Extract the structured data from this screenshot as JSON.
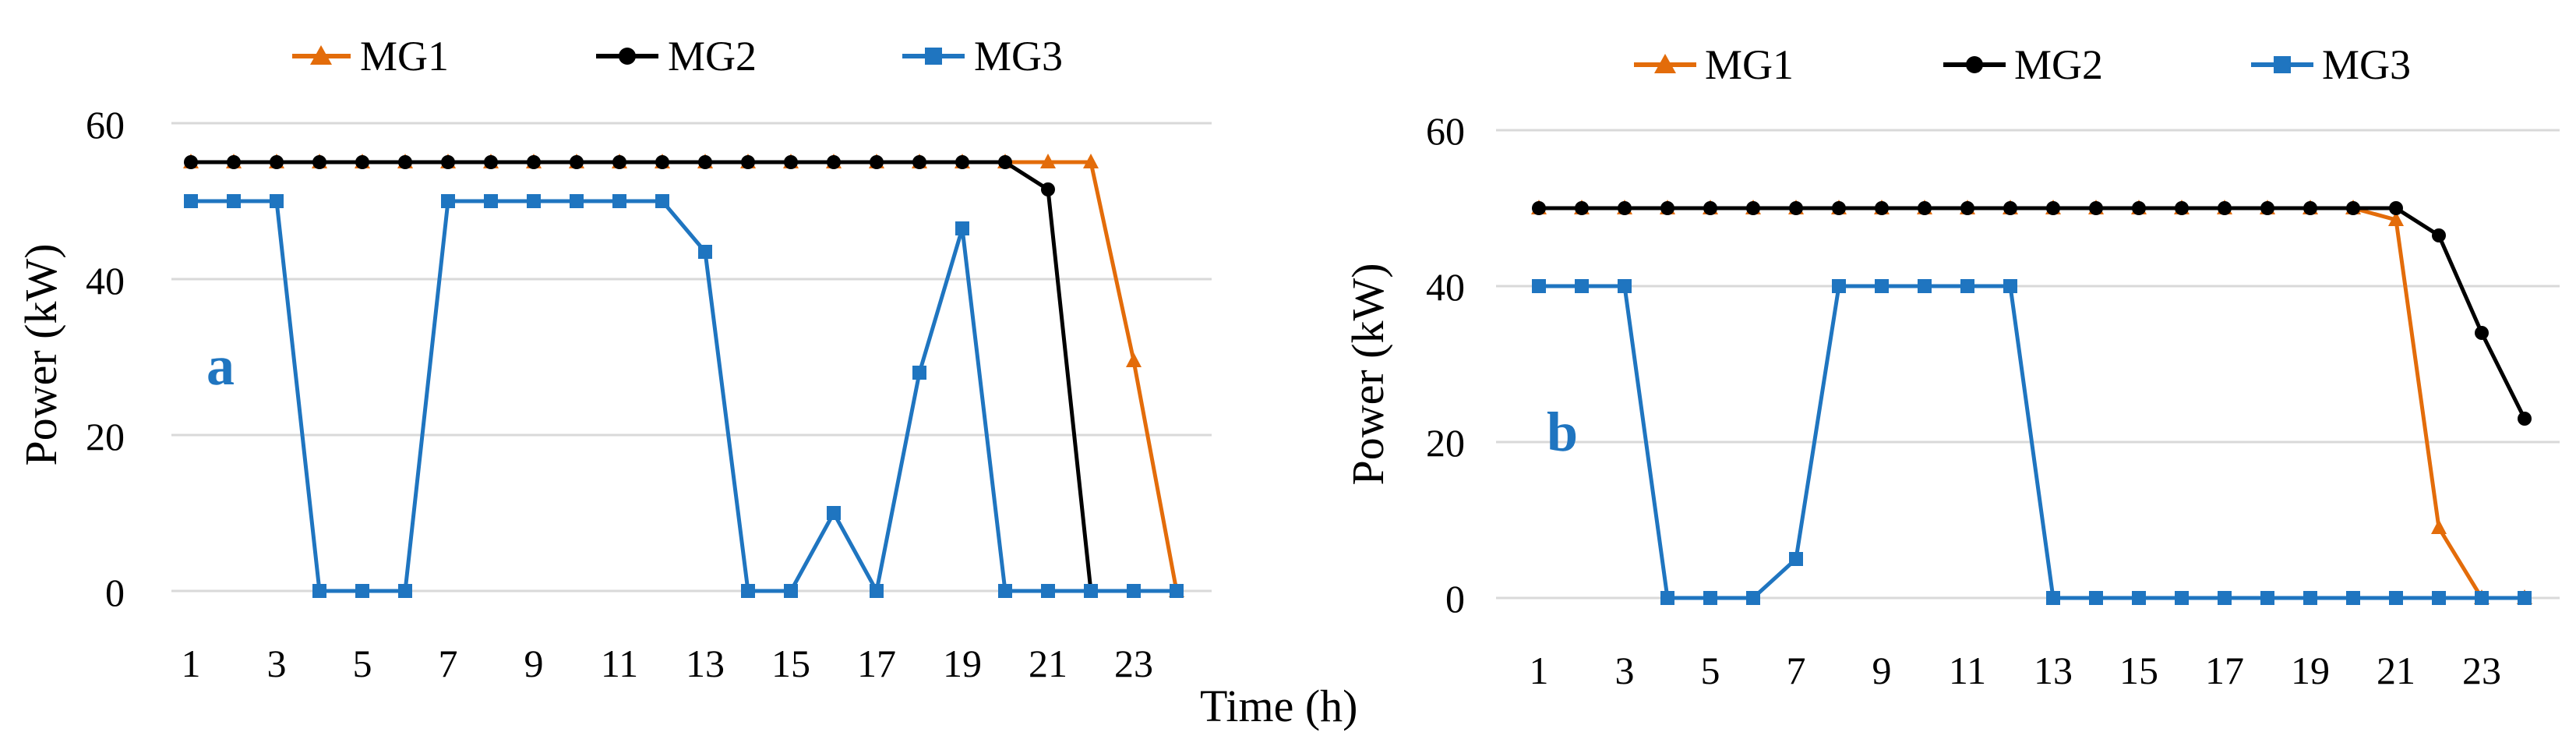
{
  "chart_data": [
    {
      "type": "line",
      "panel_label": "a",
      "ylabel": "Power (kW)",
      "xlabel": "Time (h)",
      "ylim": [
        0,
        60
      ],
      "yticks": [
        0,
        20,
        40,
        60
      ],
      "xticks": [
        1,
        3,
        5,
        7,
        9,
        11,
        13,
        15,
        17,
        19,
        21,
        23
      ],
      "grid": true,
      "legend_position": "top",
      "x": [
        1,
        2,
        3,
        4,
        5,
        6,
        7,
        8,
        9,
        10,
        11,
        12,
        13,
        14,
        15,
        16,
        17,
        18,
        19,
        20,
        21,
        22,
        23,
        24
      ],
      "series": [
        {
          "name": "MG1",
          "color": "#e36c0a",
          "marker": "triangle",
          "values": [
            55,
            55,
            55,
            55,
            55,
            55,
            55,
            55,
            55,
            55,
            55,
            55,
            55,
            55,
            55,
            55,
            55,
            55,
            55,
            55,
            55,
            55,
            29.5,
            0
          ]
        },
        {
          "name": "MG2",
          "color": "#000000",
          "marker": "circle",
          "values": [
            55,
            55,
            55,
            55,
            55,
            55,
            55,
            55,
            55,
            55,
            55,
            55,
            55,
            55,
            55,
            55,
            55,
            55,
            55,
            55,
            51.5,
            0,
            0,
            0
          ]
        },
        {
          "name": "MG3",
          "color": "#1f75c0",
          "marker": "square",
          "values": [
            50,
            50,
            50,
            0,
            0,
            0,
            50,
            50,
            50,
            50,
            50,
            50,
            43.5,
            0,
            0,
            10,
            0,
            28,
            46.5,
            0,
            0,
            0,
            0,
            0
          ]
        }
      ]
    },
    {
      "type": "line",
      "panel_label": "b",
      "ylabel": "Power (kW)",
      "xlabel": "",
      "ylim": [
        0,
        60
      ],
      "yticks": [
        0,
        20,
        40,
        60
      ],
      "xticks": [
        1,
        3,
        5,
        7,
        9,
        11,
        13,
        15,
        17,
        19,
        21,
        23
      ],
      "grid": true,
      "legend_position": "top",
      "x": [
        1,
        2,
        3,
        4,
        5,
        6,
        7,
        8,
        9,
        10,
        11,
        12,
        13,
        14,
        15,
        16,
        17,
        18,
        19,
        20,
        21,
        22,
        23,
        24
      ],
      "series": [
        {
          "name": "MG1",
          "color": "#e36c0a",
          "marker": "triangle",
          "values": [
            50,
            50,
            50,
            50,
            50,
            50,
            50,
            50,
            50,
            50,
            50,
            50,
            50,
            50,
            50,
            50,
            50,
            50,
            50,
            50,
            48.5,
            9,
            0,
            0
          ]
        },
        {
          "name": "MG2",
          "color": "#000000",
          "marker": "circle",
          "values": [
            50,
            50,
            50,
            50,
            50,
            50,
            50,
            50,
            50,
            50,
            50,
            50,
            50,
            50,
            50,
            50,
            50,
            50,
            50,
            50,
            50,
            46.5,
            34,
            23
          ]
        },
        {
          "name": "MG3",
          "color": "#1f75c0",
          "marker": "square",
          "values": [
            40,
            40,
            40,
            0,
            0,
            0,
            5,
            40,
            40,
            40,
            40,
            40,
            0,
            0,
            0,
            0,
            0,
            0,
            0,
            0,
            0,
            0,
            0,
            0
          ]
        }
      ]
    }
  ]
}
